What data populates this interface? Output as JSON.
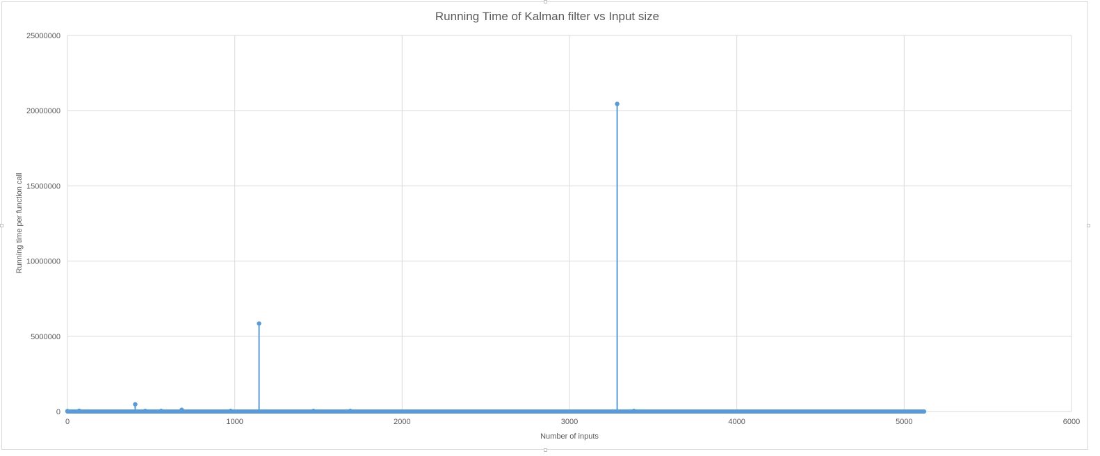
{
  "chart_data": {
    "type": "scatter",
    "title": "Running Time of Kalman filter vs Input size",
    "xlabel": "Number of inputs",
    "ylabel": "Running time per function call",
    "xlim": [
      0,
      6000
    ],
    "ylim": [
      0,
      25000000
    ],
    "x_ticks": [
      "0",
      "1000",
      "2000",
      "3000",
      "4000",
      "5000",
      "6000"
    ],
    "y_ticks": [
      "0",
      "5000000",
      "10000000",
      "15000000",
      "20000000",
      "25000000"
    ],
    "grid": true,
    "legend": "none",
    "series_color": "#5b9bd5",
    "baseline": {
      "x_range": [
        0,
        5120
      ],
      "y": 0
    },
    "points": [
      {
        "x": 0,
        "y": 30000
      },
      {
        "x": 70,
        "y": 50000
      },
      {
        "x": 405,
        "y": 480000
      },
      {
        "x": 465,
        "y": 40000
      },
      {
        "x": 560,
        "y": 40000
      },
      {
        "x": 683,
        "y": 110000
      },
      {
        "x": 975,
        "y": 40000
      },
      {
        "x": 1145,
        "y": 5850000
      },
      {
        "x": 1470,
        "y": 40000
      },
      {
        "x": 1690,
        "y": 40000
      },
      {
        "x": 3285,
        "y": 20450000
      },
      {
        "x": 3385,
        "y": 40000
      }
    ]
  }
}
